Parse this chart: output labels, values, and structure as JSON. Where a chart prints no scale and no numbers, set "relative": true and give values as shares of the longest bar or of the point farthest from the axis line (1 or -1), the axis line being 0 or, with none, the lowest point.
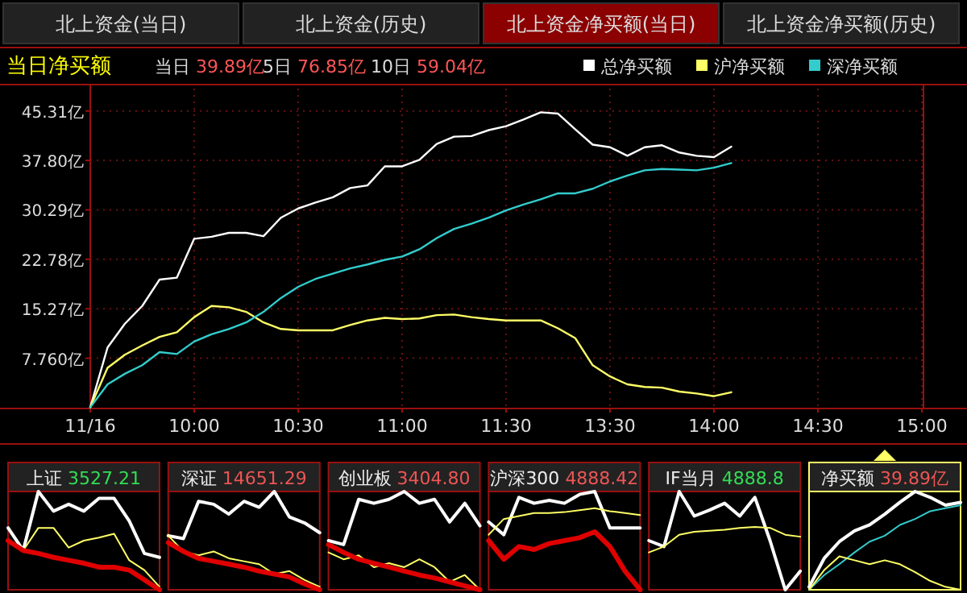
{
  "chart_data": [
    {
      "type": "line",
      "title": "当日净买额",
      "annotations": [
        "北上资金(当日)",
        "北上资金(历史)",
        "北上资金净买额(当日)",
        "北上资金净买额(历史)",
        "当日 39.89亿",
        "5日 76.85亿",
        "10日 59.04亿"
      ],
      "categories": [
        "11/16",
        null,
        null,
        null,
        null,
        null,
        "10:00",
        null,
        null,
        null,
        null,
        null,
        "10:30",
        null,
        null,
        null,
        null,
        null,
        "11:00",
        null,
        null,
        null,
        null,
        null,
        "11:30",
        null,
        null,
        null,
        null,
        null,
        "13:30",
        null,
        null,
        null,
        null,
        null,
        "14:00",
        null,
        null,
        null,
        null,
        null,
        "14:30",
        null,
        null,
        null,
        null,
        null,
        "15:00"
      ],
      "ylim": [
        0.25,
        48.7
      ],
      "yticks": [
        {
          "value": 7.76,
          "label": "7.760亿"
        },
        {
          "value": 15.27,
          "label": "15.27亿"
        },
        {
          "value": 22.78,
          "label": "22.78亿"
        },
        {
          "value": 30.29,
          "label": "30.29亿"
        },
        {
          "value": 37.8,
          "label": "37.80亿"
        },
        {
          "value": 45.31,
          "label": "45.31亿"
        }
      ],
      "grid": true,
      "legend": "top right",
      "series": [
        {
          "name": "总净买额",
          "color": "#ffffff",
          "values": [
            0.3,
            9.4,
            13,
            15.7,
            19.7,
            20,
            25.9,
            26.2,
            26.8,
            26.8,
            26.3,
            29.1,
            30.5,
            31.4,
            32.2,
            33.6,
            34,
            36.9,
            36.9,
            37.9,
            40.3,
            41.4,
            41.5,
            42.4,
            43,
            44,
            45.1,
            44.9,
            42.5,
            40.2,
            39.8,
            38.5,
            39.8,
            40.1,
            39,
            38.5,
            38.3,
            39.9,
            null,
            null,
            null,
            null,
            null,
            null,
            null,
            null,
            null,
            null,
            null
          ]
        },
        {
          "name": "沪净买额",
          "color": "#ffff66",
          "values": [
            0.3,
            6.3,
            8.3,
            9.7,
            11,
            11.7,
            14,
            15.7,
            15.5,
            14.8,
            13.2,
            12.2,
            12,
            12,
            12,
            12.8,
            13.5,
            13.9,
            13.7,
            13.8,
            14.3,
            14.4,
            14,
            13.7,
            13.5,
            13.5,
            13.5,
            12.3,
            10.8,
            6.7,
            5,
            3.8,
            3.4,
            3.3,
            2.7,
            2.4,
            2,
            2.6,
            null,
            null,
            null,
            null,
            null,
            null,
            null,
            null,
            null,
            null,
            null
          ]
        },
        {
          "name": "深净买额",
          "color": "#33cccc",
          "values": [
            0.3,
            3.8,
            5.4,
            6.7,
            8.7,
            8.4,
            10.3,
            11.4,
            12.2,
            13.2,
            14.8,
            16.9,
            18.6,
            19.8,
            20.6,
            21.4,
            22,
            22.7,
            23.2,
            24.3,
            26,
            27.4,
            28.2,
            29.1,
            30.2,
            31.1,
            31.9,
            32.8,
            32.8,
            33.5,
            34.6,
            35.5,
            36.3,
            36.5,
            36.4,
            36.3,
            36.7,
            37.4,
            null,
            null,
            null,
            null,
            null,
            null,
            null,
            null,
            null,
            null,
            null
          ]
        }
      ]
    },
    {
      "type": "line",
      "relative": true,
      "title": "上证",
      "subtitle": "3527.21",
      "categories": [
        null,
        null,
        null,
        null,
        null,
        null,
        null,
        null,
        null,
        null,
        null
      ],
      "series": [
        {
          "color": "#ffffff",
          "values": [
            0.63,
            0.4,
            1,
            0.8,
            0.87,
            0.8,
            0.93,
            0.93,
            0.7,
            0.37,
            0.33
          ]
        },
        {
          "color": "#ffff66",
          "values": [
            0.5,
            0.4,
            0.63,
            0.63,
            0.43,
            0.5,
            0.53,
            0.57,
            0.3,
            0.2,
            0.03
          ]
        },
        {
          "color": "#e00000",
          "values": [
            0.5,
            0.4,
            0.37,
            0.33,
            0.3,
            0.27,
            0.23,
            0.23,
            0.2,
            0.1,
            0
          ]
        }
      ]
    },
    {
      "type": "line",
      "relative": true,
      "title": "深证",
      "subtitle": "14651.29",
      "categories": [
        null,
        null,
        null,
        null,
        null,
        null,
        null,
        null,
        null,
        null,
        null
      ],
      "series": [
        {
          "color": "#ffffff",
          "values": [
            0.55,
            0.52,
            0.9,
            0.87,
            0.77,
            0.9,
            0.84,
            1,
            0.74,
            0.68,
            0.58
          ]
        },
        {
          "color": "#ffff66",
          "values": [
            0.55,
            0.39,
            0.35,
            0.39,
            0.32,
            0.29,
            0.26,
            0.16,
            0.19,
            0.1,
            0.03
          ]
        },
        {
          "color": "#e00000",
          "values": [
            0.48,
            0.39,
            0.32,
            0.29,
            0.26,
            0.23,
            0.19,
            0.16,
            0.13,
            0.06,
            0
          ]
        }
      ]
    },
    {
      "type": "line",
      "relative": true,
      "title": "创业板",
      "subtitle": "3404.80",
      "categories": [
        null,
        null,
        null,
        null,
        null,
        null,
        null,
        null,
        null,
        null,
        null
      ],
      "series": [
        {
          "color": "#ffffff",
          "values": [
            0.5,
            0.46,
            0.92,
            0.88,
            0.92,
            1,
            0.88,
            0.92,
            0.69,
            0.88,
            0.65
          ]
        },
        {
          "color": "#ffff66",
          "values": [
            0.38,
            0.31,
            0.35,
            0.23,
            0.27,
            0.23,
            0.31,
            0.23,
            0.08,
            0.15,
            0
          ]
        },
        {
          "color": "#e00000",
          "values": [
            0.46,
            0.38,
            0.31,
            0.27,
            0.23,
            0.19,
            0.15,
            0.12,
            0.08,
            0.04,
            0
          ]
        }
      ]
    },
    {
      "type": "line",
      "relative": true,
      "title": "沪深300",
      "subtitle": "4888.42",
      "categories": [
        null,
        null,
        null,
        null,
        null,
        null,
        null,
        null,
        null,
        null,
        null
      ],
      "series": [
        {
          "color": "#ffffff",
          "values": [
            0.69,
            0.56,
            0.94,
            0.88,
            0.91,
            0.88,
            0.97,
            1,
            0.63,
            0.63,
            0.63
          ]
        },
        {
          "color": "#ffff66",
          "values": [
            0.56,
            0.72,
            0.75,
            0.78,
            0.78,
            0.79,
            0.81,
            0.83,
            0.8,
            0.78,
            0.76
          ]
        },
        {
          "color": "#e00000",
          "values": [
            0.5,
            0.31,
            0.44,
            0.41,
            0.47,
            0.5,
            0.53,
            0.59,
            0.44,
            0.19,
            0
          ]
        }
      ]
    },
    {
      "type": "line",
      "relative": true,
      "title": "IF当月",
      "subtitle": "4888.8",
      "categories": [
        null,
        null,
        null,
        null,
        null,
        null,
        null,
        null,
        null,
        null,
        null
      ],
      "series": [
        {
          "color": "#ffffff",
          "values": [
            0.5,
            0.44,
            1,
            0.75,
            0.81,
            0.88,
            0.75,
            0.94,
            0.5,
            0,
            0.19
          ]
        },
        {
          "color": "#ffff66",
          "values": [
            0.38,
            0.44,
            0.56,
            0.59,
            0.6,
            0.61,
            0.63,
            0.64,
            0.63,
            0.56,
            0.54
          ]
        }
      ]
    },
    {
      "type": "line",
      "relative": true,
      "title": "净买额",
      "subtitle": "39.89亿",
      "categories": [
        null,
        null,
        null,
        null,
        null,
        null,
        null,
        null,
        null,
        null,
        null
      ],
      "series": [
        {
          "color": "#ffffff",
          "values": [
            0.03,
            0.32,
            0.49,
            0.6,
            0.66,
            0.77,
            0.89,
            1,
            0.94,
            0.86,
            0.89
          ]
        },
        {
          "color": "#33cccc",
          "values": [
            0,
            0.15,
            0.26,
            0.38,
            0.49,
            0.55,
            0.66,
            0.72,
            0.8,
            0.83,
            0.86
          ]
        },
        {
          "color": "#ffff66",
          "values": [
            0,
            0.2,
            0.34,
            0.3,
            0.26,
            0.3,
            0.26,
            0.18,
            0.09,
            0.03,
            0
          ]
        }
      ]
    }
  ]
}
